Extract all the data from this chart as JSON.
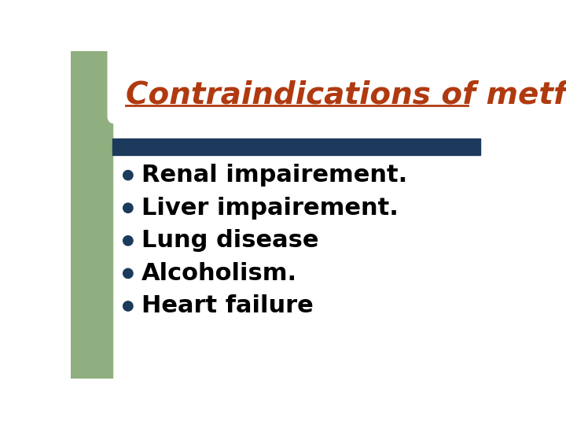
{
  "title": "Contraindications of metformin",
  "title_color": "#B03A10",
  "title_fontsize": 28,
  "background_color": "#FFFFFF",
  "left_sidebar_color": "#8FAF80",
  "top_sidebar_color": "#8FAF80",
  "divider_bar_color": "#1B3A5C",
  "bullet_color": "#1B3A5C",
  "bullet_text_color": "#000000",
  "bullet_fontsize": 22,
  "bullets": [
    "Renal impairement.",
    "Liver impairement.",
    "Lung disease",
    "Alcoholism.",
    "Heart failure"
  ]
}
